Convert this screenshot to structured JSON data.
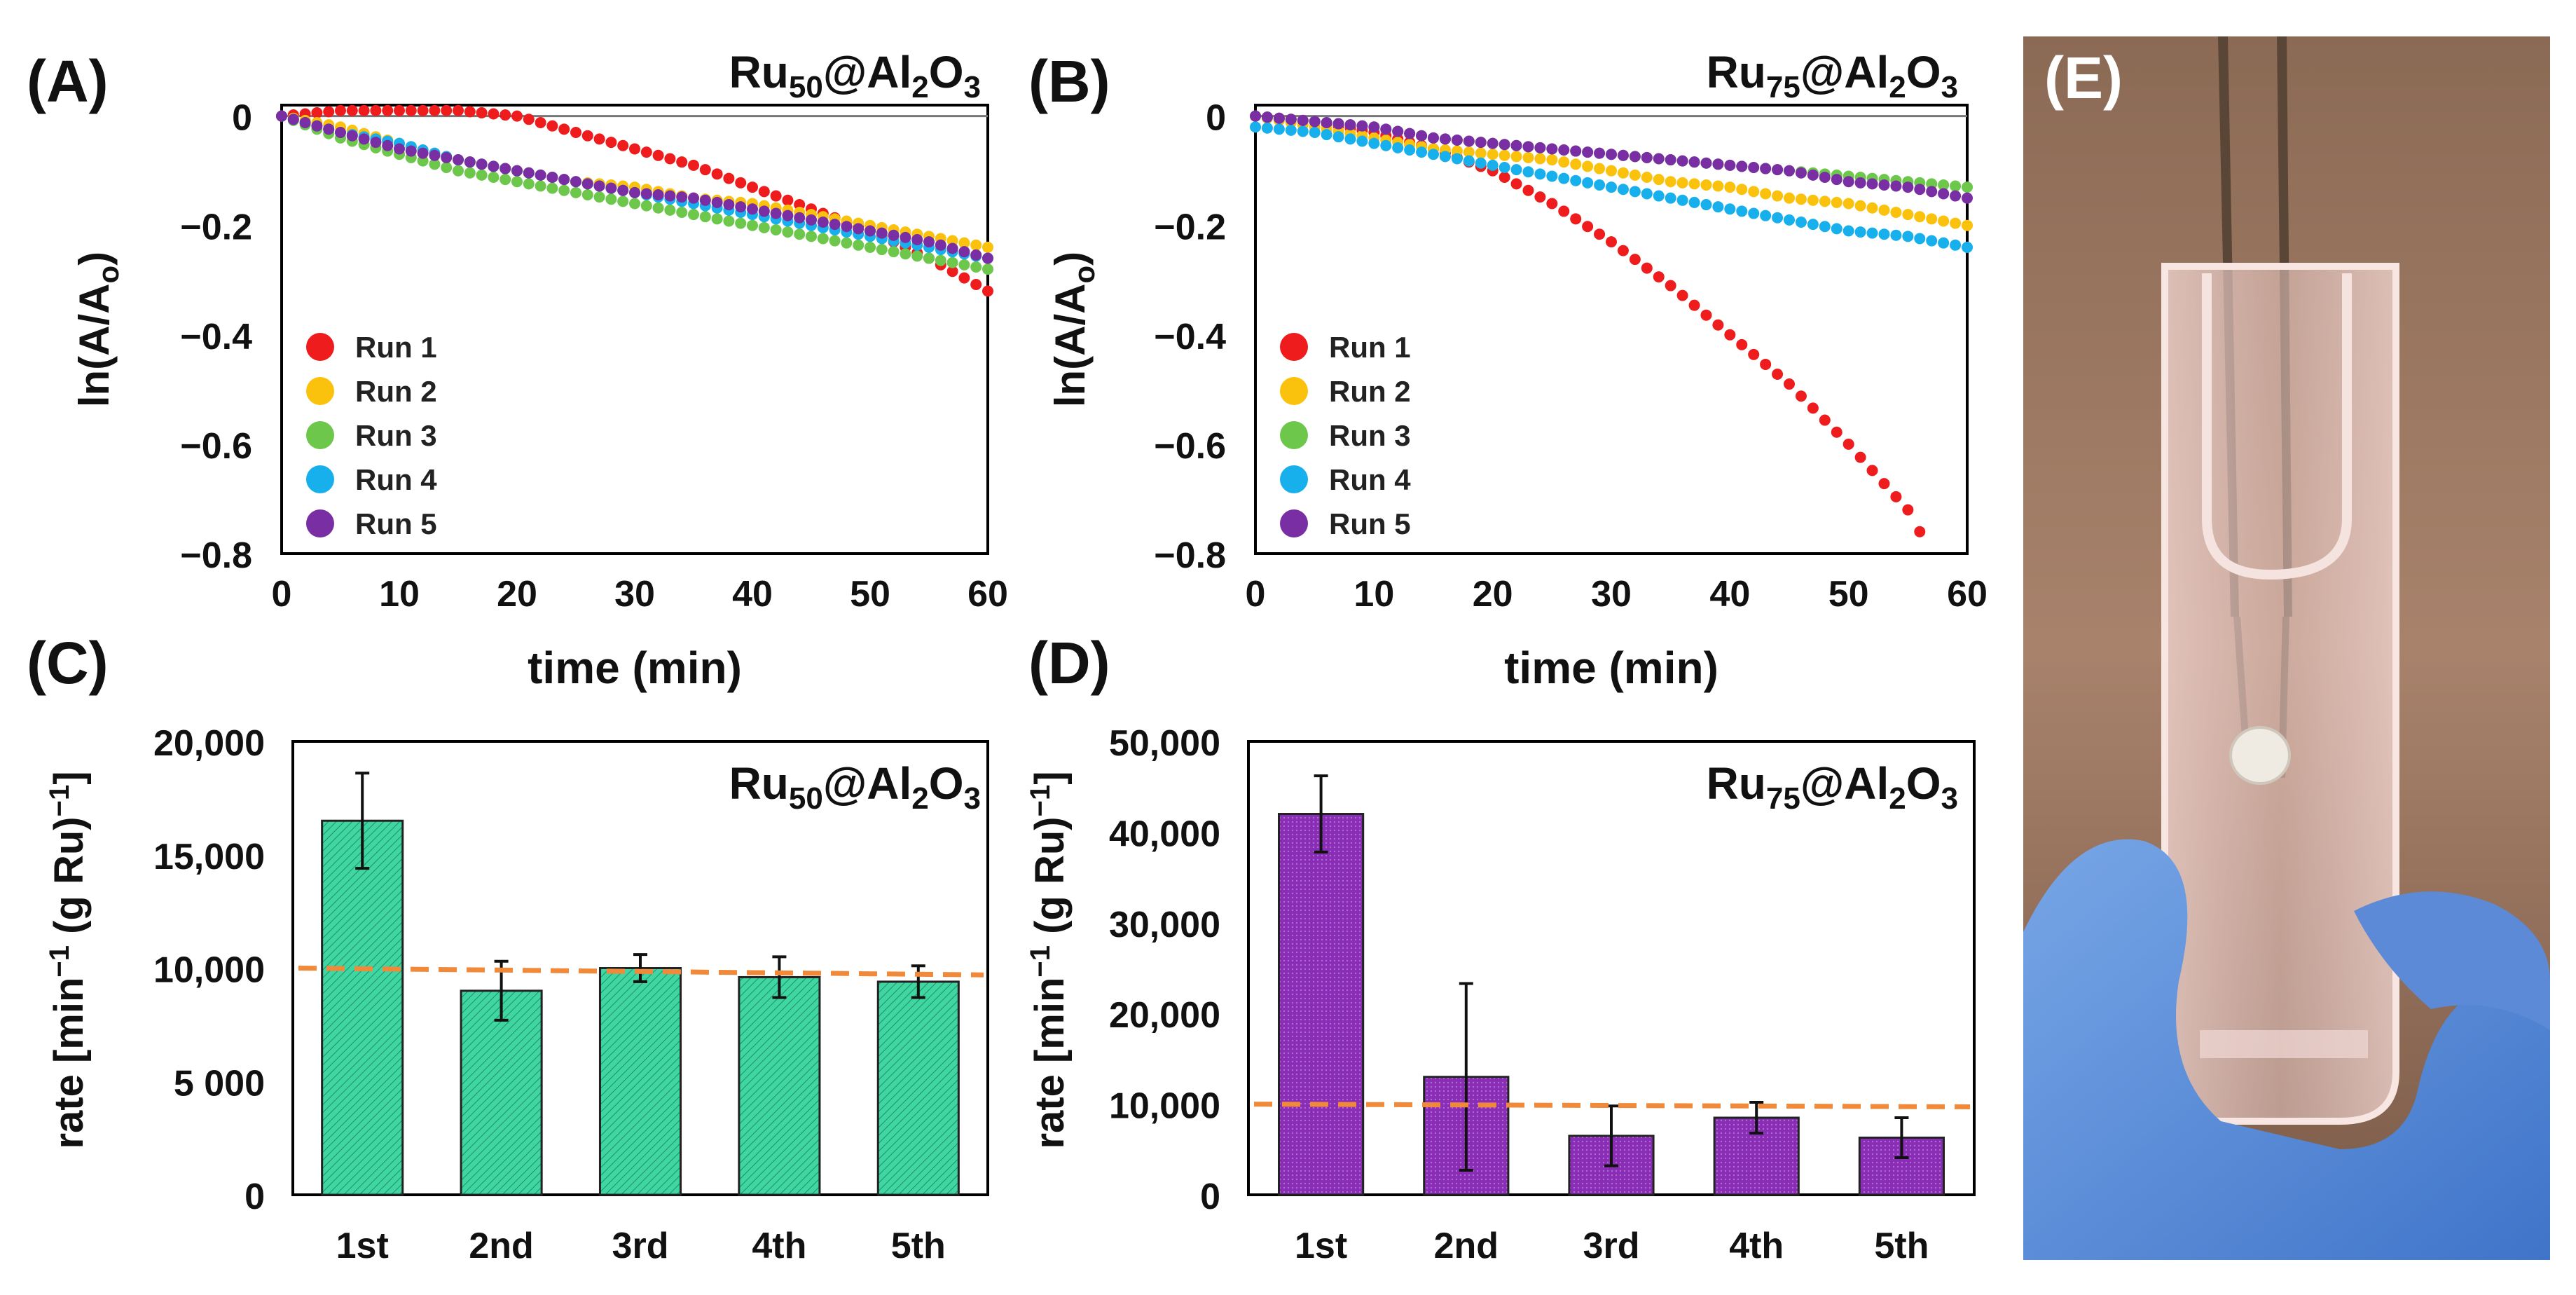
{
  "panels": [
    {
      "id": "A",
      "label": "(A)",
      "title": {
        "base": "Ru",
        "sub1": "50",
        "mid": "@Al",
        "sub2": "2",
        "mid2": "O",
        "sub3": "3"
      },
      "xlabel": "time (min)",
      "ylabel": {
        "base": "ln(A/A",
        "sub": "o",
        "tail": ")"
      },
      "xticks": [
        "0",
        "10",
        "20",
        "30",
        "40",
        "50",
        "60"
      ],
      "yticks": [
        "0",
        "-0.2",
        "-0.4",
        "-0.6",
        "-0.8"
      ],
      "legend": [
        "Run 1",
        "Run 2",
        "Run 3",
        "Run 4",
        "Run 5"
      ]
    },
    {
      "id": "B",
      "label": "(B)",
      "title": {
        "base": "Ru",
        "sub1": "75",
        "mid": "@Al",
        "sub2": "2",
        "mid2": "O",
        "sub3": "3"
      },
      "xlabel": "time (min)",
      "ylabel": {
        "base": "ln(A/A",
        "sub": "o",
        "tail": ")"
      },
      "xticks": [
        "0",
        "10",
        "20",
        "30",
        "40",
        "50",
        "60"
      ],
      "yticks": [
        "0",
        "-0.2",
        "-0.4",
        "-0.6",
        "-0.8"
      ],
      "legend": [
        "Run 1",
        "Run 2",
        "Run 3",
        "Run 4",
        "Run 5"
      ]
    },
    {
      "id": "C",
      "label": "(C)",
      "title": {
        "base": "Ru",
        "sub1": "50",
        "mid": "@Al",
        "sub2": "2",
        "mid2": "O",
        "sub3": "3"
      },
      "ylabel": {
        "a": "rate [min",
        "sup1": "−1",
        "b": " (g Ru)",
        "sup2": "−1",
        "c": "]"
      },
      "yticks": [
        "20,000",
        "15,000",
        "10,000",
        "5 000",
        "0"
      ],
      "categories": [
        "1st",
        "2nd",
        "3rd",
        "4th",
        "5th"
      ]
    },
    {
      "id": "D",
      "label": "(D)",
      "title": {
        "base": "Ru",
        "sub1": "75",
        "mid": "@Al",
        "sub2": "2",
        "mid2": "O",
        "sub3": "3"
      },
      "ylabel": {
        "a": "rate [min",
        "sup1": "−1",
        "b": " (g Ru)",
        "sup2": "−1",
        "c": "]"
      },
      "yticks": [
        "50,000",
        "40,000",
        "30,000",
        "20,000",
        "10,000",
        "0"
      ],
      "categories": [
        "1st",
        "2nd",
        "3rd",
        "4th",
        "5th"
      ]
    }
  ],
  "photo": {
    "label": "(E)",
    "icon": "cuvette-photo-icon"
  },
  "colors": {
    "run1": "#ee1c1c",
    "run2": "#fbc20d",
    "run3": "#6cc74a",
    "run4": "#17b0ec",
    "run5": "#7a2ea4",
    "barC": "#3fd6a2",
    "barD": "#8a2db5",
    "reference": "#f08a3a"
  },
  "chart_data": [
    {
      "panel": "A",
      "type": "scatter",
      "title": "Ru50@Al2O3",
      "xlabel": "time (min)",
      "ylabel": "ln(A/Ao)",
      "xlim": [
        0,
        60
      ],
      "ylim": [
        -0.8,
        0.02
      ],
      "series": [
        {
          "name": "Run 1",
          "x": [
            0,
            5,
            10,
            15,
            20,
            25,
            30,
            35,
            40,
            45,
            50,
            55,
            60
          ],
          "y": [
            0,
            0.01,
            0.01,
            0.01,
            0.0,
            -0.03,
            -0.06,
            -0.09,
            -0.13,
            -0.17,
            -0.21,
            -0.26,
            -0.32
          ]
        },
        {
          "name": "Run 2",
          "x": [
            0,
            5,
            10,
            15,
            20,
            25,
            30,
            35,
            40,
            45,
            50,
            55,
            60
          ],
          "y": [
            0,
            -0.02,
            -0.05,
            -0.08,
            -0.1,
            -0.12,
            -0.13,
            -0.15,
            -0.16,
            -0.18,
            -0.2,
            -0.22,
            -0.24
          ]
        },
        {
          "name": "Run 3",
          "x": [
            0,
            5,
            10,
            15,
            20,
            25,
            30,
            35,
            40,
            45,
            50,
            55,
            60
          ],
          "y": [
            0,
            -0.04,
            -0.07,
            -0.1,
            -0.12,
            -0.14,
            -0.16,
            -0.18,
            -0.2,
            -0.22,
            -0.24,
            -0.26,
            -0.28
          ]
        },
        {
          "name": "Run 4",
          "x": [
            0,
            5,
            10,
            15,
            20,
            25,
            30,
            35,
            40,
            45,
            50,
            55,
            60
          ],
          "y": [
            0,
            -0.03,
            -0.05,
            -0.08,
            -0.1,
            -0.12,
            -0.14,
            -0.16,
            -0.18,
            -0.2,
            -0.22,
            -0.24,
            -0.26
          ]
        },
        {
          "name": "Run 5",
          "x": [
            0,
            5,
            10,
            15,
            20,
            25,
            30,
            35,
            40,
            45,
            50,
            55,
            60
          ],
          "y": [
            0,
            -0.03,
            -0.06,
            -0.08,
            -0.1,
            -0.12,
            -0.14,
            -0.15,
            -0.17,
            -0.19,
            -0.21,
            -0.23,
            -0.26
          ]
        }
      ]
    },
    {
      "panel": "B",
      "type": "scatter",
      "title": "Ru75@Al2O3",
      "xlabel": "time (min)",
      "ylabel": "ln(A/Ao)",
      "xlim": [
        0,
        60
      ],
      "ylim": [
        -0.8,
        0.02
      ],
      "series": [
        {
          "name": "Run 1",
          "x": [
            0,
            5,
            10,
            15,
            20,
            25,
            30,
            35,
            40,
            45,
            50,
            55,
            56
          ],
          "y": [
            0,
            -0.01,
            -0.03,
            -0.06,
            -0.1,
            -0.16,
            -0.23,
            -0.31,
            -0.4,
            -0.49,
            -0.6,
            -0.72,
            -0.76
          ]
        },
        {
          "name": "Run 2",
          "x": [
            0,
            5,
            10,
            15,
            20,
            25,
            30,
            35,
            40,
            45,
            50,
            55,
            60
          ],
          "y": [
            0,
            -0.02,
            -0.04,
            -0.06,
            -0.07,
            -0.08,
            -0.1,
            -0.12,
            -0.13,
            -0.15,
            -0.16,
            -0.18,
            -0.2
          ]
        },
        {
          "name": "Run 3",
          "x": [
            0,
            5,
            10,
            15,
            20,
            25,
            30,
            35,
            40,
            45,
            50,
            55,
            60
          ],
          "y": [
            0,
            -0.01,
            -0.02,
            -0.04,
            -0.05,
            -0.06,
            -0.07,
            -0.08,
            -0.09,
            -0.1,
            -0.11,
            -0.12,
            -0.13
          ]
        },
        {
          "name": "Run 4",
          "x": [
            0,
            5,
            10,
            15,
            20,
            25,
            30,
            35,
            40,
            45,
            50,
            55,
            60
          ],
          "y": [
            -0.02,
            -0.03,
            -0.05,
            -0.07,
            -0.09,
            -0.11,
            -0.13,
            -0.15,
            -0.17,
            -0.19,
            -0.21,
            -0.22,
            -0.24
          ]
        },
        {
          "name": "Run 5",
          "x": [
            0,
            5,
            10,
            15,
            20,
            25,
            30,
            35,
            40,
            45,
            50,
            55,
            60
          ],
          "y": [
            0,
            -0.01,
            -0.02,
            -0.04,
            -0.05,
            -0.06,
            -0.07,
            -0.08,
            -0.09,
            -0.1,
            -0.12,
            -0.13,
            -0.15
          ]
        }
      ]
    },
    {
      "panel": "C",
      "type": "bar",
      "title": "Ru50@Al2O3",
      "ylabel": "rate [min−1 (g Ru)−1]",
      "categories": [
        "1st",
        "2nd",
        "3rd",
        "4th",
        "5th"
      ],
      "values": [
        16500,
        9000,
        10000,
        9600,
        9400
      ],
      "errors": [
        2100,
        1300,
        600,
        900,
        700
      ],
      "reference_line": 10000,
      "ylim": [
        0,
        20000
      ]
    },
    {
      "panel": "D",
      "type": "bar",
      "title": "Ru75@Al2O3",
      "ylabel": "rate [min−1 (g Ru)−1]",
      "categories": [
        "1st",
        "2nd",
        "3rd",
        "4th",
        "5th"
      ],
      "values": [
        42000,
        13000,
        6500,
        8500,
        6300
      ],
      "errors": [
        4200,
        10300,
        3300,
        1700,
        2200
      ],
      "reference_line": 10000,
      "ylim": [
        0,
        50000
      ]
    }
  ]
}
